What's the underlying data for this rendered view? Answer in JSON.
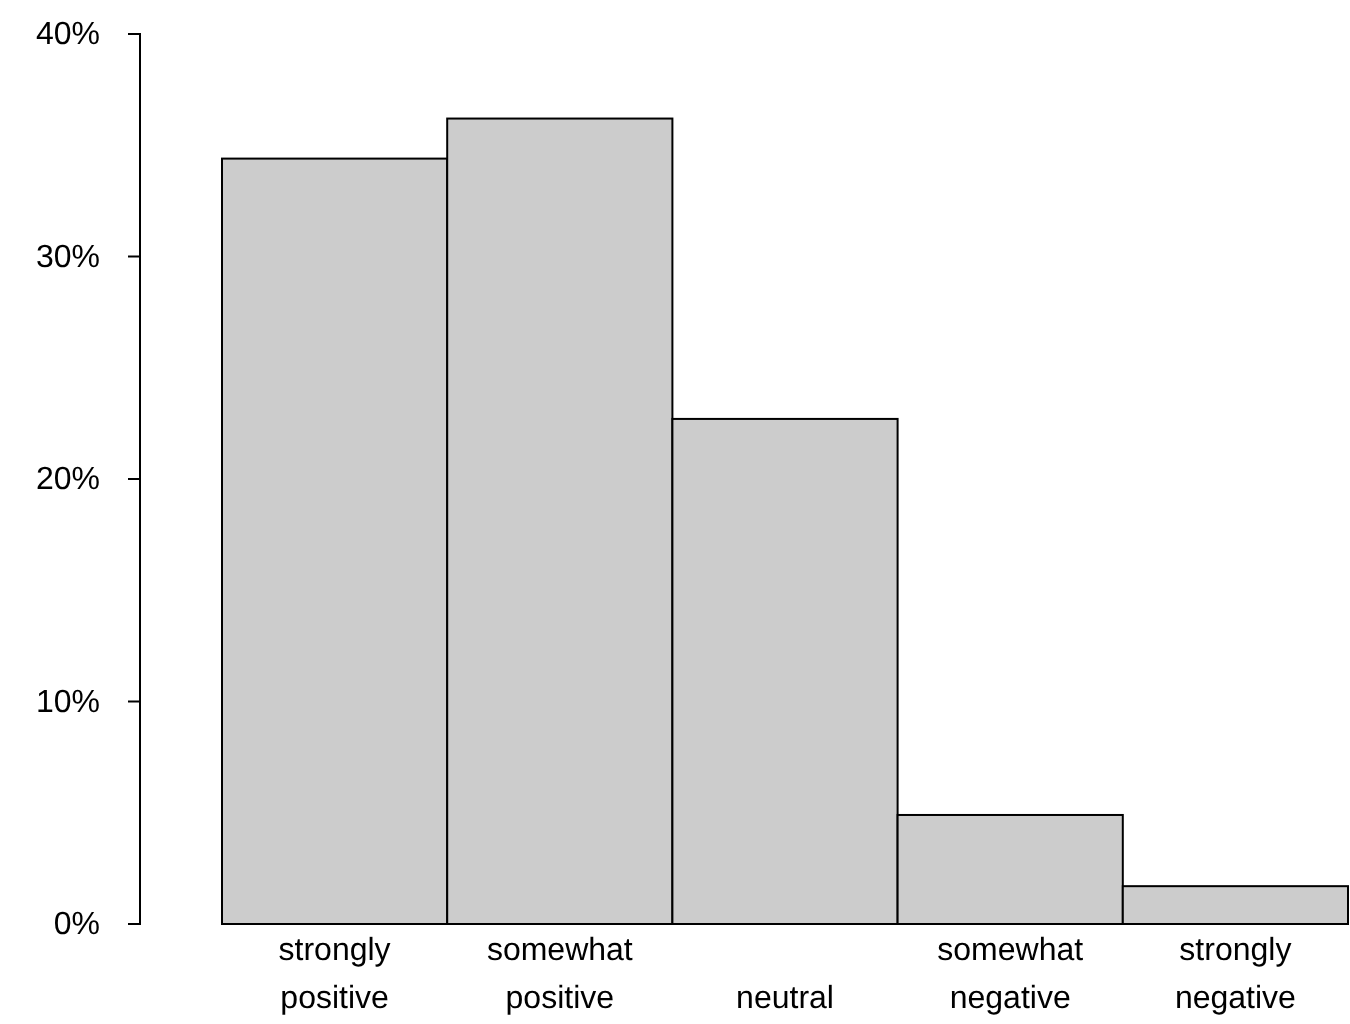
{
  "chart_data": {
    "type": "bar",
    "categories": [
      "strongly positive",
      "somewhat positive",
      "neutral",
      "somewhat negative",
      "strongly negative"
    ],
    "values": [
      34.4,
      36.2,
      22.7,
      4.9,
      1.7
    ],
    "color": "#cccccc",
    "ylim": [
      0,
      40
    ],
    "yticks": [
      {
        "value": 0,
        "label": "0%"
      },
      {
        "value": 10,
        "label": "10%"
      },
      {
        "value": 20,
        "label": "20%"
      },
      {
        "value": 30,
        "label": "30%"
      },
      {
        "value": 40,
        "label": "40%"
      }
    ],
    "grid": false
  }
}
